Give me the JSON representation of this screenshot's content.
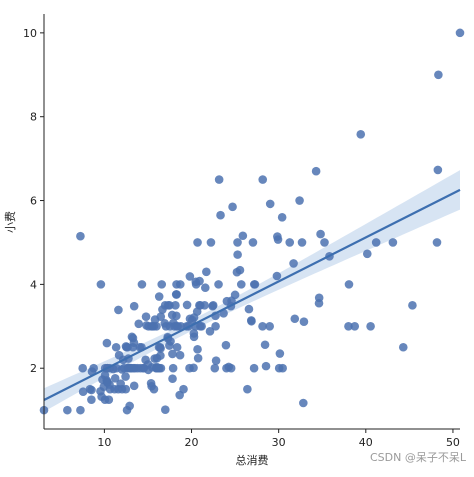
{
  "chart_data": {
    "type": "scatter",
    "title": "",
    "xlabel": "总消费",
    "ylabel": "小费",
    "xlim": [
      3.07,
      50.81
    ],
    "ylim": [
      0.55,
      10.45
    ],
    "xticks": [
      10,
      20,
      30,
      40,
      50
    ],
    "yticks": [
      2,
      4,
      6,
      8,
      10
    ],
    "grid": false,
    "colors": {
      "points": "#4c72b0",
      "line": "#3d6fb0",
      "band": "#c9dbef"
    },
    "regression": {
      "intercept": 0.92,
      "slope": 0.105,
      "ci": "shaded band"
    },
    "points": [
      [
        3.07,
        1.0
      ],
      [
        5.75,
        1.0
      ],
      [
        7.25,
        1.0
      ],
      [
        7.25,
        5.15
      ],
      [
        7.51,
        2.0
      ],
      [
        7.56,
        1.44
      ],
      [
        8.35,
        1.5
      ],
      [
        8.51,
        1.25
      ],
      [
        8.52,
        1.48
      ],
      [
        8.58,
        1.92
      ],
      [
        8.77,
        2.0
      ],
      [
        9.55,
        1.45
      ],
      [
        9.6,
        4.0
      ],
      [
        9.68,
        1.32
      ],
      [
        9.78,
        1.73
      ],
      [
        9.94,
        1.56
      ],
      [
        10.07,
        1.25
      ],
      [
        10.07,
        1.83
      ],
      [
        10.09,
        2.0
      ],
      [
        10.27,
        1.71
      ],
      [
        10.29,
        2.6
      ],
      [
        10.33,
        1.67
      ],
      [
        10.33,
        2.0
      ],
      [
        10.34,
        1.66
      ],
      [
        10.34,
        2.0
      ],
      [
        10.51,
        1.25
      ],
      [
        10.59,
        1.61
      ],
      [
        10.63,
        2.0
      ],
      [
        10.65,
        1.5
      ],
      [
        11.02,
        1.98
      ],
      [
        11.17,
        1.5
      ],
      [
        11.24,
        1.76
      ],
      [
        11.35,
        2.5
      ],
      [
        11.38,
        2.0
      ],
      [
        11.59,
        1.5
      ],
      [
        11.61,
        3.39
      ],
      [
        11.69,
        2.31
      ],
      [
        11.87,
        1.63
      ],
      [
        12.02,
        1.97
      ],
      [
        12.03,
        1.5
      ],
      [
        12.16,
        2.2
      ],
      [
        12.26,
        2.0
      ],
      [
        12.43,
        1.8
      ],
      [
        12.46,
        1.5
      ],
      [
        12.48,
        2.52
      ],
      [
        12.54,
        2.5
      ],
      [
        12.6,
        1.0
      ],
      [
        12.66,
        2.5
      ],
      [
        12.69,
        2.0
      ],
      [
        12.74,
        2.01
      ],
      [
        12.76,
        2.23
      ],
      [
        12.9,
        1.1
      ],
      [
        13.0,
        2.0
      ],
      [
        13.03,
        2.0
      ],
      [
        13.13,
        2.0
      ],
      [
        13.16,
        2.75
      ],
      [
        13.27,
        2.5
      ],
      [
        13.28,
        2.72
      ],
      [
        13.37,
        2.0
      ],
      [
        13.39,
        2.61
      ],
      [
        13.42,
        1.58
      ],
      [
        13.42,
        3.48
      ],
      [
        13.51,
        2.0
      ],
      [
        13.81,
        2.0
      ],
      [
        13.94,
        3.06
      ],
      [
        14.07,
        2.5
      ],
      [
        14.15,
        2.0
      ],
      [
        14.26,
        2.5
      ],
      [
        14.31,
        4.0
      ],
      [
        14.48,
        2.0
      ],
      [
        14.52,
        2.0
      ],
      [
        14.73,
        2.2
      ],
      [
        14.78,
        3.23
      ],
      [
        14.83,
        3.02
      ],
      [
        15.01,
        2.09
      ],
      [
        15.04,
        1.96
      ],
      [
        15.06,
        3.0
      ],
      [
        15.36,
        1.64
      ],
      [
        15.38,
        3.0
      ],
      [
        15.42,
        1.57
      ],
      [
        15.48,
        2.02
      ],
      [
        15.53,
        3.0
      ],
      [
        15.69,
        1.5
      ],
      [
        15.69,
        3.0
      ],
      [
        15.77,
        2.23
      ],
      [
        15.81,
        3.16
      ],
      [
        15.95,
        2.0
      ],
      [
        15.98,
        2.03
      ],
      [
        15.98,
        3.0
      ],
      [
        16.0,
        2.0
      ],
      [
        16.04,
        2.24
      ],
      [
        16.21,
        2.0
      ],
      [
        16.27,
        2.5
      ],
      [
        16.29,
        3.71
      ],
      [
        16.31,
        2.0
      ],
      [
        16.4,
        2.5
      ],
      [
        16.43,
        2.3
      ],
      [
        16.45,
        2.47
      ],
      [
        16.47,
        3.23
      ],
      [
        16.49,
        2.0
      ],
      [
        16.58,
        4.0
      ],
      [
        16.66,
        3.4
      ],
      [
        16.93,
        3.07
      ],
      [
        16.97,
        3.5
      ],
      [
        16.99,
        1.01
      ],
      [
        17.07,
        3.0
      ],
      [
        17.26,
        2.74
      ],
      [
        17.29,
        2.71
      ],
      [
        17.31,
        3.5
      ],
      [
        17.46,
        2.54
      ],
      [
        17.47,
        3.5
      ],
      [
        17.51,
        3.0
      ],
      [
        17.59,
        2.64
      ],
      [
        17.78,
        3.27
      ],
      [
        17.81,
        2.34
      ],
      [
        17.82,
        1.75
      ],
      [
        17.89,
        2.0
      ],
      [
        17.92,
        3.08
      ],
      [
        18.04,
        3.0
      ],
      [
        18.15,
        3.5
      ],
      [
        18.24,
        3.76
      ],
      [
        18.26,
        3.25
      ],
      [
        18.28,
        4.0
      ],
      [
        18.29,
        3.0
      ],
      [
        18.29,
        3.76
      ],
      [
        18.35,
        2.5
      ],
      [
        18.43,
        3.0
      ],
      [
        18.64,
        1.36
      ],
      [
        18.69,
        2.31
      ],
      [
        18.71,
        4.0
      ],
      [
        18.78,
        3.0
      ],
      [
        19.08,
        1.5
      ],
      [
        19.44,
        3.0
      ],
      [
        19.49,
        3.51
      ],
      [
        19.65,
        3.0
      ],
      [
        19.77,
        2.0
      ],
      [
        19.81,
        4.19
      ],
      [
        19.82,
        3.18
      ],
      [
        20.08,
        3.15
      ],
      [
        20.23,
        2.01
      ],
      [
        20.27,
        2.83
      ],
      [
        20.29,
        2.75
      ],
      [
        20.29,
        3.21
      ],
      [
        20.45,
        3.0
      ],
      [
        20.49,
        4.06
      ],
      [
        20.53,
        4.0
      ],
      [
        20.65,
        3.35
      ],
      [
        20.69,
        2.45
      ],
      [
        20.69,
        5.0
      ],
      [
        20.76,
        2.24
      ],
      [
        20.9,
        3.5
      ],
      [
        20.92,
        4.08
      ],
      [
        21.01,
        3.5
      ],
      [
        21.01,
        3.0
      ],
      [
        21.16,
        3.0
      ],
      [
        21.5,
        3.5
      ],
      [
        21.58,
        3.92
      ],
      [
        21.7,
        4.3
      ],
      [
        22.12,
        2.88
      ],
      [
        22.23,
        5.0
      ],
      [
        22.42,
        3.48
      ],
      [
        22.49,
        3.5
      ],
      [
        22.67,
        2.0
      ],
      [
        22.75,
        3.25
      ],
      [
        22.76,
        3.0
      ],
      [
        22.82,
        2.18
      ],
      [
        23.1,
        4.0
      ],
      [
        23.17,
        6.5
      ],
      [
        23.33,
        5.65
      ],
      [
        23.68,
        3.31
      ],
      [
        23.95,
        2.55
      ],
      [
        24.01,
        2.0
      ],
      [
        24.06,
        3.6
      ],
      [
        24.27,
        2.03
      ],
      [
        24.52,
        3.48
      ],
      [
        24.55,
        2.0
      ],
      [
        24.59,
        3.61
      ],
      [
        24.71,
        5.85
      ],
      [
        25.0,
        3.75
      ],
      [
        25.21,
        4.29
      ],
      [
        25.28,
        5.0
      ],
      [
        25.29,
        4.71
      ],
      [
        25.56,
        4.34
      ],
      [
        25.71,
        4.0
      ],
      [
        25.89,
        5.16
      ],
      [
        26.41,
        1.5
      ],
      [
        26.59,
        3.41
      ],
      [
        26.86,
        3.14
      ],
      [
        26.88,
        3.12
      ],
      [
        27.05,
        5.0
      ],
      [
        27.18,
        2.0
      ],
      [
        27.2,
        4.0
      ],
      [
        27.28,
        4.0
      ],
      [
        28.15,
        3.0
      ],
      [
        28.17,
        6.5
      ],
      [
        28.44,
        2.56
      ],
      [
        28.55,
        2.05
      ],
      [
        28.97,
        3.0
      ],
      [
        29.03,
        5.92
      ],
      [
        29.8,
        4.2
      ],
      [
        29.85,
        5.14
      ],
      [
        29.93,
        5.07
      ],
      [
        30.06,
        2.0
      ],
      [
        30.14,
        2.35
      ],
      [
        30.4,
        5.6
      ],
      [
        30.46,
        2.0
      ],
      [
        31.27,
        5.0
      ],
      [
        31.71,
        4.5
      ],
      [
        31.85,
        3.18
      ],
      [
        32.4,
        6.0
      ],
      [
        32.68,
        5.0
      ],
      [
        32.83,
        1.17
      ],
      [
        32.9,
        3.11
      ],
      [
        34.3,
        6.7
      ],
      [
        34.63,
        3.55
      ],
      [
        34.65,
        3.68
      ],
      [
        34.81,
        5.2
      ],
      [
        35.26,
        5.0
      ],
      [
        35.83,
        4.67
      ],
      [
        38.01,
        3.0
      ],
      [
        38.07,
        4.0
      ],
      [
        38.73,
        3.0
      ],
      [
        39.42,
        7.58
      ],
      [
        40.17,
        4.73
      ],
      [
        40.55,
        3.0
      ],
      [
        41.19,
        5.0
      ],
      [
        43.11,
        5.0
      ],
      [
        44.3,
        2.5
      ],
      [
        45.35,
        3.5
      ],
      [
        48.17,
        5.0
      ],
      [
        48.27,
        6.73
      ],
      [
        48.33,
        9.0
      ],
      [
        50.81,
        10.0
      ]
    ]
  },
  "watermark": "CSDN @呆子不呆L"
}
